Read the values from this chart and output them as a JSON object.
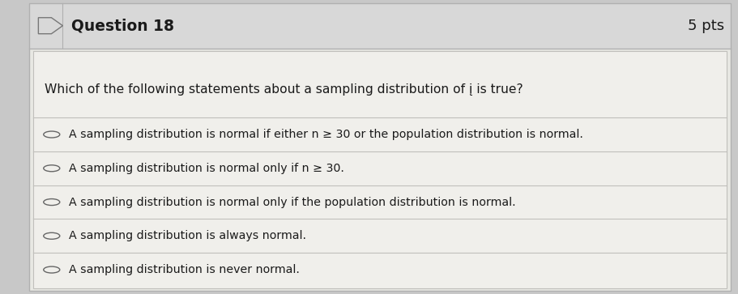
{
  "title": "Question 18",
  "pts": "5 pts",
  "question": "Which of the following statements about a sampling distribution of į is true?",
  "options": [
    "A sampling distribution is normal if either n ≥ 30 or the population distribution is normal.",
    "A sampling distribution is normal only if n ≥ 30.",
    "A sampling distribution is normal only if the population distribution is normal.",
    "A sampling distribution is always normal.",
    "A sampling distribution is never normal."
  ],
  "outer_bg": "#c8c8c8",
  "header_bg": "#d8d8d8",
  "body_bg": "#e8e8e3",
  "content_bg": "#f0efeb",
  "border_color": "#b0b0b0",
  "separator_color": "#c0bfbb",
  "text_color": "#1a1a1a",
  "header_fontsize": 13.5,
  "pts_fontsize": 13.0,
  "question_fontsize": 11.2,
  "option_fontsize": 10.2,
  "figsize": [
    9.11,
    3.63
  ],
  "dpi": 100
}
